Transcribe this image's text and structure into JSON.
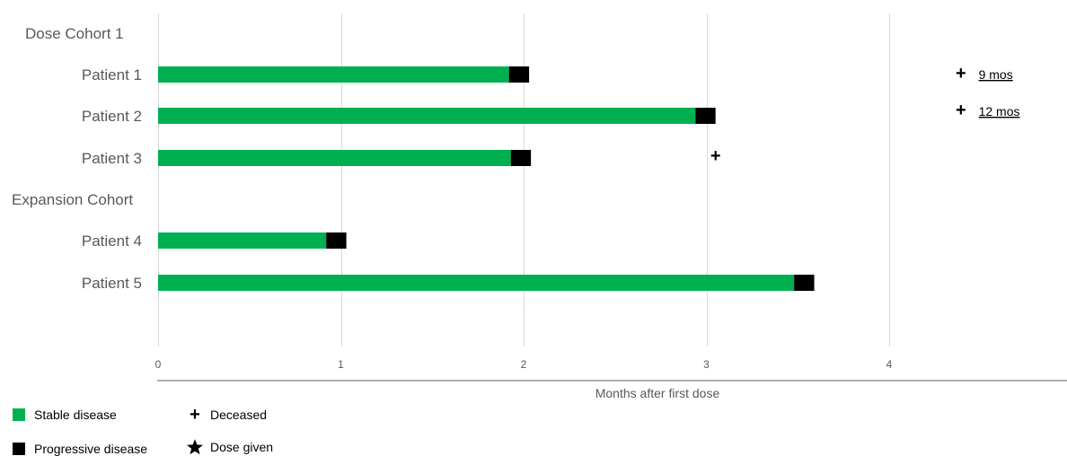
{
  "chart_data": {
    "type": "bar",
    "orientation": "horizontal",
    "stacked": true,
    "xlabel": "Months after first dose",
    "xlim": [
      0,
      4
    ],
    "xticks": [
      "0",
      "1",
      "2",
      "3",
      "4"
    ],
    "grid": true,
    "groups": [
      "Dose Cohort 1",
      "Expansion Cohort"
    ],
    "categories": [
      "Patient 1",
      "Patient 2",
      "Patient 3",
      "Patient 4",
      "Patient 5"
    ],
    "category_groups": [
      "Dose Cohort 1",
      "Dose Cohort 1",
      "Dose Cohort 1",
      "Expansion Cohort",
      "Expansion Cohort"
    ],
    "series": [
      {
        "name": "Stable disease",
        "values": [
          1.92,
          2.94,
          1.93,
          0.92,
          3.48
        ]
      },
      {
        "name": "Progressive disease",
        "values": [
          0.11,
          0.11,
          0.11,
          0.11,
          0.11
        ]
      }
    ],
    "deceased_markers": [
      {
        "patient": "Patient 1",
        "label": "9 mos",
        "note_prefix": "+"
      },
      {
        "patient": "Patient 2",
        "label": "12 mos",
        "note_prefix": "+"
      },
      {
        "patient": "Patient 3",
        "x": 3.05,
        "symbol": "+"
      }
    ],
    "colors": {
      "stable": "#00b050",
      "progressive": "#000000",
      "grid": "#d9d9d9"
    },
    "legend": {
      "placement": "bottom-left",
      "items": [
        {
          "label": "Stable disease",
          "symbol": "green-square"
        },
        {
          "label": "Deceased",
          "symbol": "+"
        },
        {
          "label": "Progressive disease",
          "symbol": "black-square"
        },
        {
          "label": "Dose given",
          "symbol": "star-icon"
        }
      ]
    }
  }
}
